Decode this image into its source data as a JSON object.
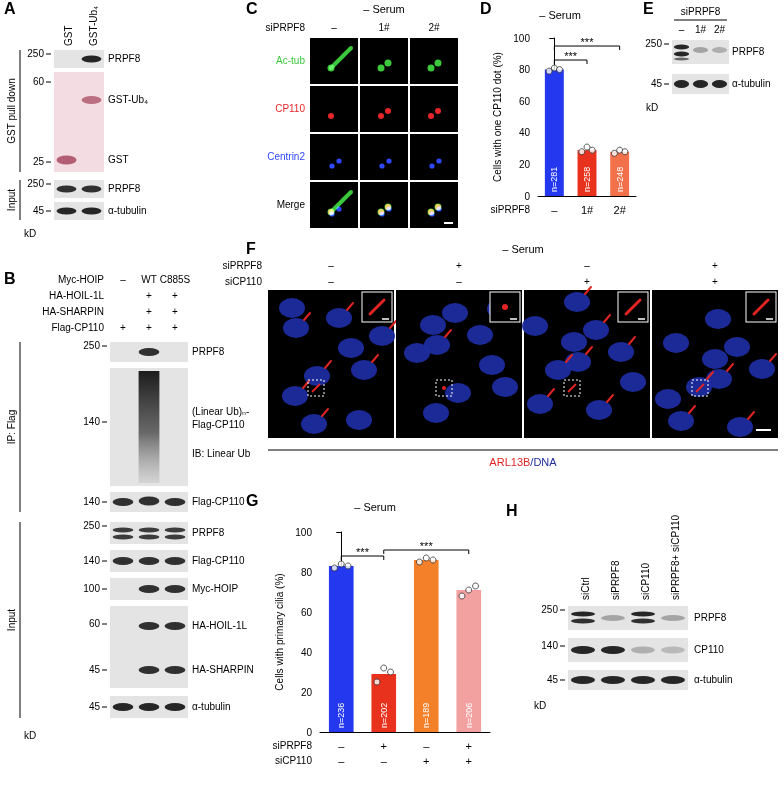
{
  "figure": {
    "A": {
      "label": "A",
      "lanes": [
        "GST",
        "GST-Ub₄"
      ],
      "sections": [
        {
          "label": "GST pull down",
          "rows": [
            {
              "names": [
                "PRPF8"
              ],
              "kd": [
                250
              ]
            },
            {
              "names": [
                "GST-Ub₄",
                "GST"
              ],
              "kd": [
                60,
                25
              ]
            }
          ]
        },
        {
          "label": "Input",
          "rows": [
            {
              "names": [
                "PRPF8"
              ],
              "kd": [
                250
              ]
            },
            {
              "names": [
                "α-tubulin"
              ],
              "kd": [
                45
              ]
            }
          ]
        }
      ],
      "kd_unit": "kD"
    },
    "B": {
      "label": "B",
      "conditions": [
        {
          "label": "Myc-HOIP",
          "values": [
            "–",
            "WT",
            "C885S"
          ]
        },
        {
          "label": "HA-HOIL-1L",
          "values": [
            null,
            "+",
            "+"
          ]
        },
        {
          "label": "HA-SHARPIN",
          "values": [
            null,
            "+",
            "+"
          ]
        },
        {
          "label": "Flag-CP110",
          "values": [
            "+",
            "+",
            "+"
          ]
        }
      ],
      "sections": [
        {
          "label": "IP: Flag",
          "rows": [
            {
              "names": [
                "PRPF8"
              ],
              "kd": [
                250
              ]
            },
            {
              "names": [
                "(Linear Ub)ₙ-",
                "Flag-CP110",
                "IB: Linear Ub"
              ],
              "kd": [
                140
              ]
            },
            {
              "names": [
                "Flag-CP110"
              ],
              "kd": [
                140
              ]
            }
          ]
        },
        {
          "label": "Input",
          "rows": [
            {
              "names": [
                "PRPF8"
              ],
              "kd": [
                250
              ]
            },
            {
              "names": [
                "Flag-CP110"
              ],
              "kd": [
                140
              ]
            },
            {
              "names": [
                "Myc-HOIP"
              ],
              "kd": [
                100
              ]
            },
            {
              "names": [
                "HA-HOIL-1L",
                "HA-SHARPIN"
              ],
              "kd": [
                60,
                45
              ]
            },
            {
              "names": [
                "α-tubulin"
              ],
              "kd": [
                45
              ]
            }
          ]
        }
      ],
      "kd_unit": "kD"
    },
    "C": {
      "label": "C",
      "title": "– Serum",
      "condition": {
        "label": "siPRPF8",
        "values": [
          "–",
          "1#",
          "2#"
        ]
      },
      "channels": [
        "Ac-tub",
        "CP110",
        "Centrin2",
        "Merge"
      ]
    },
    "E": {
      "label": "E",
      "condition": {
        "label": "siPRPF8",
        "values": [
          "–",
          "1#",
          "2#"
        ]
      },
      "sections": [
        {
          "rows": [
            {
              "names": [
                "PRPF8"
              ],
              "kd": [
                250
              ]
            },
            {
              "names": [
                "α-tubulin"
              ],
              "kd": [
                45
              ]
            }
          ]
        }
      ],
      "kd_unit": "kD"
    },
    "F": {
      "label": "F",
      "title": "– Serum",
      "conditions": [
        {
          "label": "siPRPF8",
          "values": [
            "–",
            "+",
            "–",
            "+"
          ]
        },
        {
          "label": "siCP110",
          "values": [
            "–",
            "–",
            "+",
            "+"
          ]
        }
      ],
      "stain": "ARL13B/DNA"
    },
    "H": {
      "label": "H",
      "lanes": [
        "siCtrl",
        "siPRPF8",
        "siCP110",
        "siPRPF8+ siCP110"
      ],
      "sections": [
        {
          "rows": [
            {
              "names": [
                "PRPF8"
              ],
              "kd": [
                250
              ]
            },
            {
              "names": [
                "CP110"
              ],
              "kd": [
                140
              ]
            },
            {
              "names": [
                "α-tubulin"
              ],
              "kd": [
                45
              ]
            }
          ]
        }
      ],
      "kd_unit": "kD"
    }
  },
  "chart_data": [
    {
      "panel": "D",
      "type": "bar",
      "title": "– Serum",
      "y_label": "Cells with one CP110 dot (%)",
      "x_rows": [
        {
          "label": "siPRPF8",
          "values": [
            "–",
            "1#",
            "2#"
          ]
        }
      ],
      "values": [
        80,
        29,
        28
      ],
      "colors": [
        "#2438f0",
        "#e8321e",
        "#f2704a"
      ],
      "points": [
        [
          79,
          81,
          80
        ],
        [
          28,
          31,
          29
        ],
        [
          27,
          29,
          28
        ]
      ],
      "n_labels": [
        "n=281",
        "n=258",
        "n=248"
      ],
      "significance": [
        {
          "from": 0,
          "to": 1,
          "label": "***"
        },
        {
          "from": 0,
          "to": 2,
          "label": "***"
        }
      ],
      "ylim": [
        0,
        100
      ],
      "yticks": [
        0,
        20,
        40,
        60,
        80,
        100
      ],
      "grid": false
    },
    {
      "panel": "G",
      "type": "bar",
      "title": "– Serum",
      "y_label": "Cells with primary cilia (%)",
      "x_rows": [
        {
          "label": "siPRPF8",
          "values": [
            "–",
            "+",
            "–",
            "+"
          ]
        },
        {
          "label": "siCP110",
          "values": [
            "–",
            "–",
            "+",
            "+"
          ]
        }
      ],
      "values": [
        83,
        29,
        86,
        71
      ],
      "colors": [
        "#2438f0",
        "#e8321e",
        "#f5802a",
        "#f2a0a0"
      ],
      "points": [
        [
          82,
          84,
          83
        ],
        [
          25,
          32,
          30
        ],
        [
          85,
          87,
          86
        ],
        [
          68,
          71,
          73
        ]
      ],
      "n_labels": [
        "n=236",
        "n=202",
        "n=189",
        "n=206"
      ],
      "significance": [
        {
          "from": 0,
          "to": 1,
          "label": "***"
        },
        {
          "from": 1,
          "to": 3,
          "label": "***"
        }
      ],
      "ylim": [
        0,
        100
      ],
      "yticks": [
        0,
        20,
        40,
        60,
        80,
        100
      ],
      "grid": false
    }
  ]
}
